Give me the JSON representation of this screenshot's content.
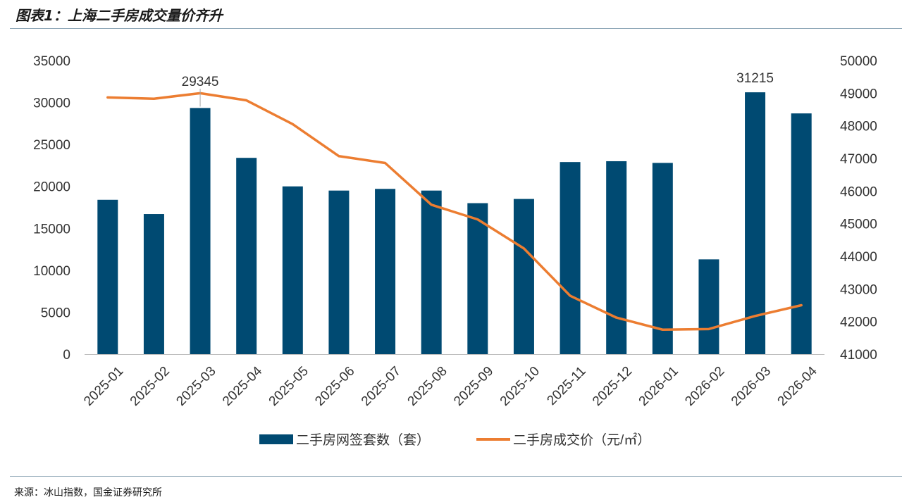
{
  "figure": {
    "title": "图表1：上海二手房成交量价齐升",
    "source": "来源：冰山指数，国金证券研究所"
  },
  "chart_data": {
    "type": "bar+line",
    "categories": [
      "2025-01",
      "2025-02",
      "2025-03",
      "2025-04",
      "2025-05",
      "2025-06",
      "2025-07",
      "2025-08",
      "2025-09",
      "2025-10",
      "2025-11",
      "2025-12",
      "2026-01",
      "2026-02",
      "2026-03",
      "2026-04"
    ],
    "series": [
      {
        "name": "二手房网签套数（套）",
        "type": "bar",
        "axis": "left",
        "color": "#004a72",
        "values": [
          18400,
          16700,
          29345,
          23400,
          20000,
          19500,
          19700,
          19500,
          18000,
          18500,
          22900,
          23000,
          22800,
          11300,
          31215,
          28700
        ]
      },
      {
        "name": "二手房成交价（元/㎡）",
        "type": "line",
        "axis": "right",
        "color": "#ec7d31",
        "values": [
          48870,
          48830,
          49000,
          48780,
          48050,
          47070,
          46860,
          45580,
          45130,
          44240,
          42790,
          42120,
          41750,
          41770,
          42170,
          42500
        ]
      }
    ],
    "data_labels": [
      {
        "category": "2025-03",
        "text": "29345"
      },
      {
        "category": "2026-03",
        "text": "31215"
      }
    ],
    "y_left": {
      "min": 0,
      "max": 35000,
      "step": 5000
    },
    "y_right": {
      "min": 41000,
      "max": 50000,
      "step": 1000
    },
    "legend_position": "bottom",
    "grid": false
  }
}
